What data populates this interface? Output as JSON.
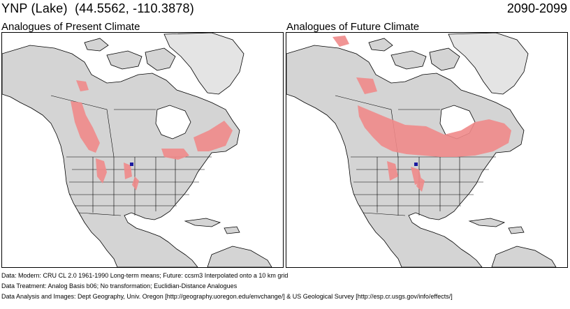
{
  "header": {
    "site_title": "YNP (Lake)  (44.5562, -110.3878)",
    "period": "2090-2099"
  },
  "panels": [
    {
      "title": "Analogues of Present Climate"
    },
    {
      "title": "Analogues of Future Climate"
    }
  ],
  "colors": {
    "land": "#d4d4d4",
    "land_relief": "#b8b8b8",
    "water": "#ffffff",
    "analog": "#f08a8a",
    "site_marker": "#1a1aa0",
    "borders": "#000000"
  },
  "footer": {
    "data_line": "Data:  Modern: CRU CL 2.0 1961-1990 Long-term means; Future: ccsm3 Interpolated onto a 10 km grid",
    "treatment_line": "Data Treatment:  Analog Basis b06; No transformation; Euclidian-Distance Analogues",
    "analysis_line": "Data Analysis and Images:  Dept Geography, Univ. Oregon [http://geography.uoregon.edu/envchange/] & US Geological Survey [http://esp.cr.usgs.gov/info/effects/]"
  }
}
